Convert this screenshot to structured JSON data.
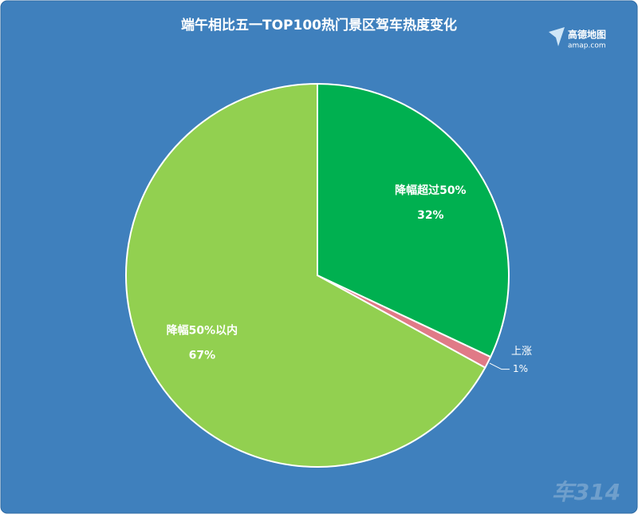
{
  "chart_data": {
    "type": "pie",
    "title": "端午相比五一TOP100热门景区驾车热度变化",
    "categories": [
      "降幅超过50%",
      "上涨",
      "降幅50%以内"
    ],
    "values": [
      32,
      1,
      67
    ],
    "value_labels": [
      "32%",
      "1%",
      "67%"
    ],
    "colors": [
      "#00b050",
      "#e07a87",
      "#92d050"
    ],
    "label_positions": [
      "inside",
      "outside",
      "inside"
    ]
  },
  "logo": {
    "name": "高德地图",
    "site": "amap.com"
  },
  "watermark": "车314"
}
